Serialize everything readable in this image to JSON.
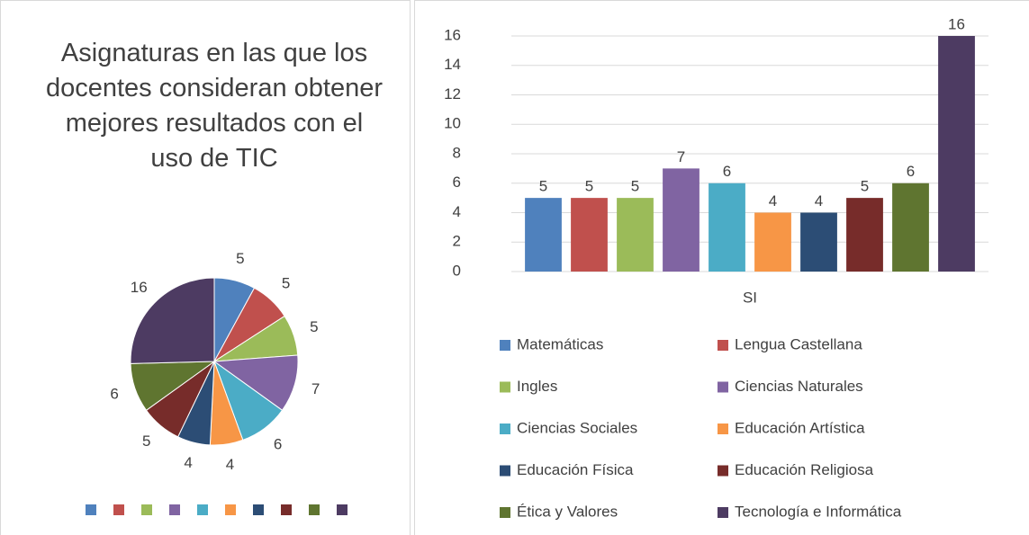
{
  "chart_data": [
    {
      "type": "pie",
      "title": "Asignaturas en las que los docentes consideran obtener mejores resultados con el uso de TIC",
      "values": [
        5,
        5,
        5,
        7,
        6,
        4,
        4,
        5,
        6,
        16
      ],
      "colors": [
        "#4f81bd",
        "#c0504d",
        "#9bbb59",
        "#8064a2",
        "#4bacc6",
        "#f79646",
        "#2c4d75",
        "#772c2a",
        "#5f7530",
        "#4d3b62"
      ],
      "legend": "bottom"
    },
    {
      "type": "bar",
      "categories": [
        "SI"
      ],
      "series": [
        {
          "name": "Matemáticas",
          "color": "#4f81bd",
          "values": [
            5
          ]
        },
        {
          "name": "Lengua Castellana",
          "color": "#c0504d",
          "values": [
            5
          ]
        },
        {
          "name": "Ingles",
          "color": "#9bbb59",
          "values": [
            5
          ]
        },
        {
          "name": "Ciencias Naturales",
          "color": "#8064a2",
          "values": [
            7
          ]
        },
        {
          "name": "Ciencias Sociales",
          "color": "#4bacc6",
          "values": [
            6
          ]
        },
        {
          "name": "Educación Artística",
          "color": "#f79646",
          "values": [
            4
          ]
        },
        {
          "name": "Educación Física",
          "color": "#2c4d75",
          "values": [
            4
          ]
        },
        {
          "name": "Educación Religiosa",
          "color": "#772c2a",
          "values": [
            5
          ]
        },
        {
          "name": "Ética y Valores",
          "color": "#5f7530",
          "values": [
            6
          ]
        },
        {
          "name": "Tecnología e Informática",
          "color": "#4d3b62",
          "values": [
            16
          ]
        }
      ],
      "ylim": [
        0,
        16
      ],
      "yticks": [
        0,
        2,
        4,
        6,
        8,
        10,
        12,
        14,
        16
      ],
      "grid": true,
      "legend": "bottom"
    }
  ]
}
